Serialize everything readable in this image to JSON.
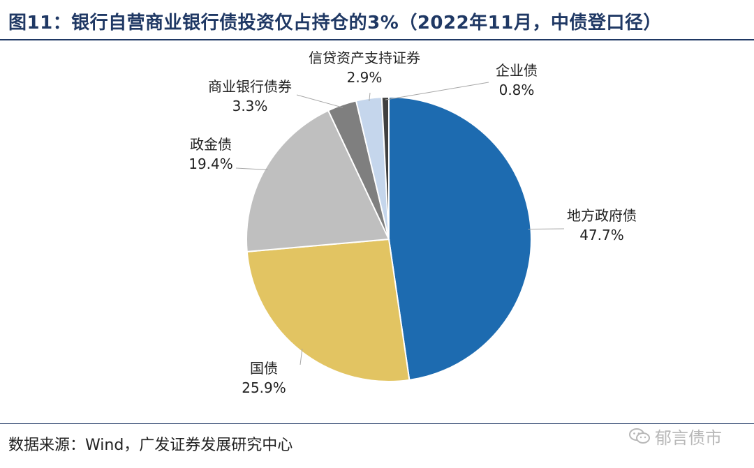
{
  "header": {
    "title": "图11：银行自营商业银行债投资仅占持仓的3%（2022年11月，中债登口径）"
  },
  "footer": {
    "source": "数据来源：Wind，广发证券发展研究中心",
    "watermark": "郁言债市",
    "watermark_icon": "wechat-icon"
  },
  "chart_data": {
    "type": "pie",
    "title": "",
    "slices": [
      {
        "label": "地方政府债",
        "value": 47.7,
        "value_label": "47.7%",
        "color": "#1d6bb0"
      },
      {
        "label": "国债",
        "value": 25.9,
        "value_label": "25.9%",
        "color": "#e2c462"
      },
      {
        "label": "政金债",
        "value": 19.4,
        "value_label": "19.4%",
        "color": "#bfbfbf"
      },
      {
        "label": "商业银行债券",
        "value": 3.3,
        "value_label": "3.3%",
        "color": "#7f7f7f"
      },
      {
        "label": "信贷资产支持证券",
        "value": 2.9,
        "value_label": "2.9%",
        "color": "#c5d6ec"
      },
      {
        "label": "企业债",
        "value": 0.8,
        "value_label": "0.8%",
        "color": "#404040"
      }
    ]
  }
}
